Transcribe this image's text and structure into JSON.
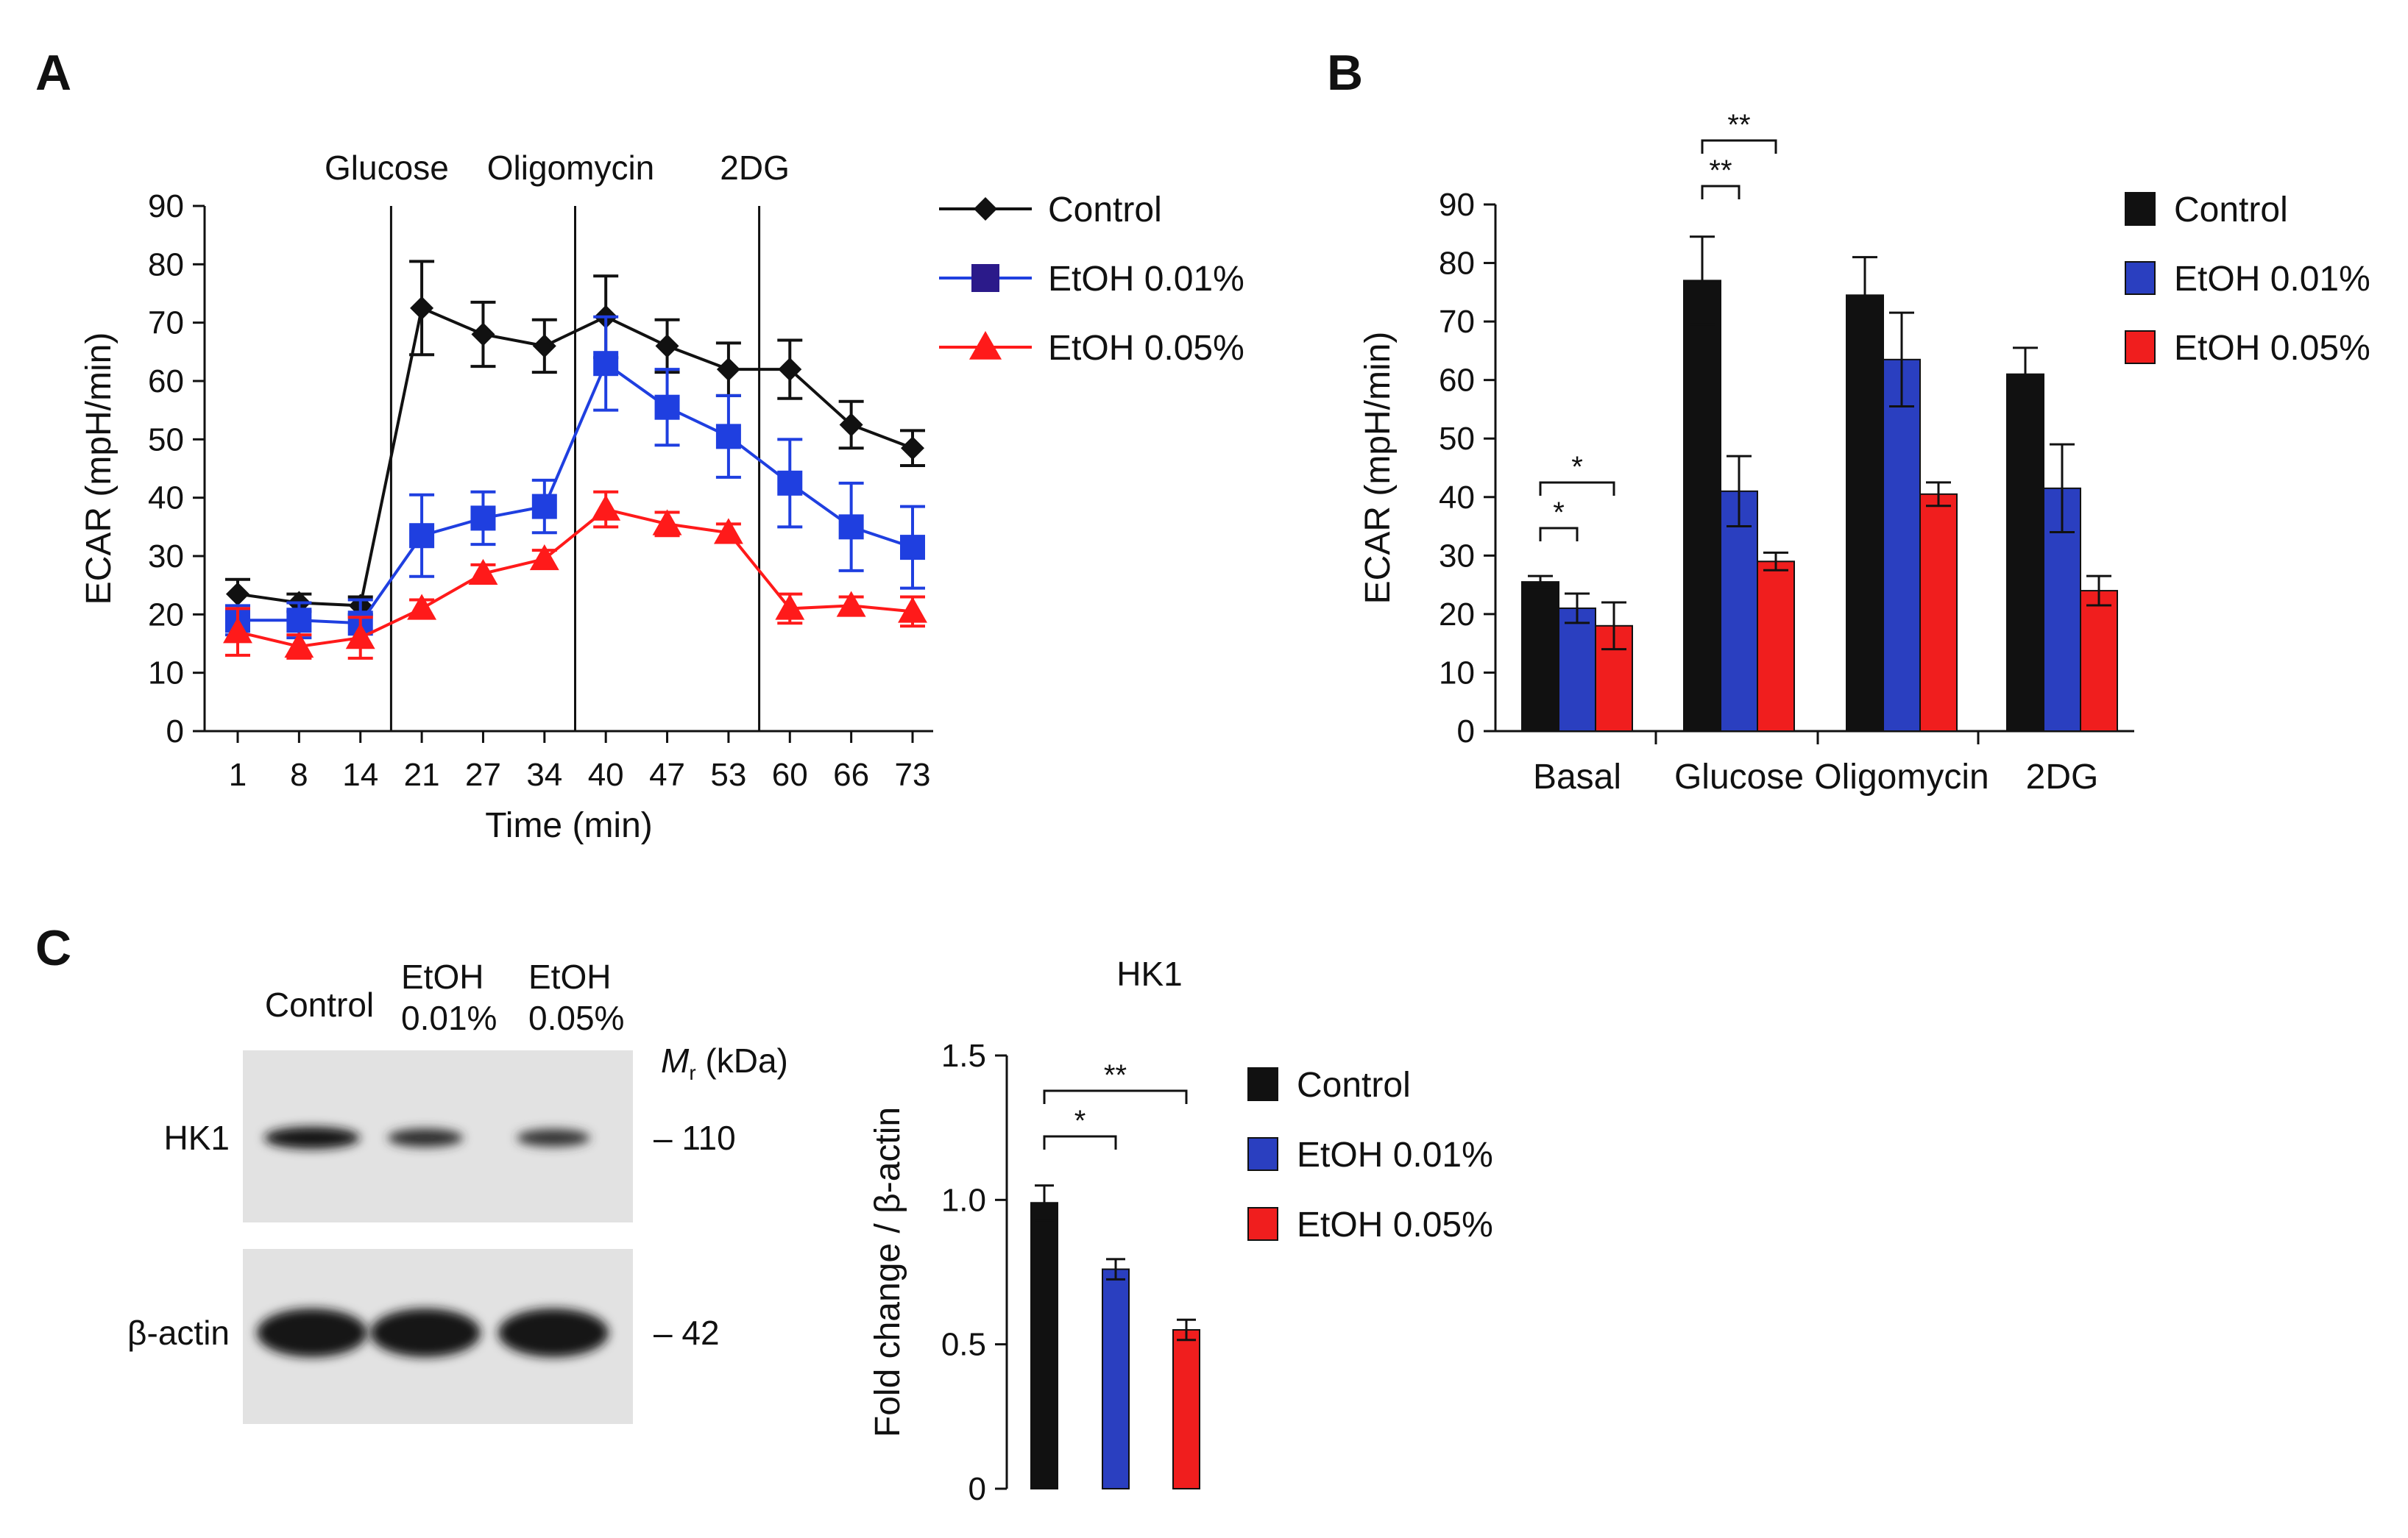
{
  "panels": {
    "a": "A",
    "b": "B",
    "c": "C"
  },
  "colors": {
    "control": "#111111",
    "etoh001": "#1f3fe0",
    "etoh005": "#ff1a1a",
    "bar_etoh001": "#2a3fc0",
    "bar_etoh005": "#f01e1e",
    "legend_square_etoh001": "#2b1a8a"
  },
  "blot": {
    "columns": [
      "Control",
      "EtOH\n0.01%",
      "EtOH\n0.05%"
    ],
    "mr_label": "M",
    "mr_sub": "r",
    "mr_unit": " (kDa)",
    "rows": [
      {
        "label": "HK1",
        "marker": "110",
        "intensity": [
          1.0,
          0.62,
          0.55
        ]
      },
      {
        "label": "β-actin",
        "marker": "42",
        "intensity": [
          1.0,
          0.97,
          0.95
        ]
      }
    ]
  },
  "chart_data": [
    {
      "panel": "A",
      "type": "line",
      "title": "",
      "xlabel": "Time (min)",
      "ylabel": "ECAR (mpH/min)",
      "ylim": [
        0,
        90
      ],
      "yticks": [
        0,
        10,
        20,
        30,
        40,
        50,
        60,
        70,
        80,
        90
      ],
      "x": [
        "1",
        "8",
        "14",
        "21",
        "27",
        "34",
        "40",
        "47",
        "53",
        "60",
        "66",
        "73"
      ],
      "injections": [
        "Glucose",
        "Oligomycin",
        "2DG"
      ],
      "legend_position": "top-right",
      "series": [
        {
          "name": "Control",
          "marker": "diamond",
          "values": [
            23.5,
            22,
            21.5,
            72.5,
            68,
            66,
            71,
            66,
            62,
            62,
            52.5,
            48.5
          ],
          "errors": [
            2.5,
            1.5,
            1.5,
            8,
            5.5,
            4.5,
            7,
            4.5,
            4.5,
            5,
            4,
            3
          ]
        },
        {
          "name": "EtOH 0.01%",
          "marker": "square",
          "values": [
            19,
            19,
            18.5,
            33.5,
            36.5,
            38.5,
            63,
            55.5,
            50.5,
            42.5,
            35,
            31.5
          ],
          "errors": [
            2.5,
            3,
            4,
            7,
            4.5,
            4.5,
            8,
            6.5,
            7,
            7.5,
            7.5,
            7
          ]
        },
        {
          "name": "EtOH 0.05%",
          "marker": "triangle",
          "values": [
            17,
            14.5,
            16,
            21,
            27,
            29.5,
            38,
            35.5,
            34,
            21,
            21.5,
            20.5
          ],
          "errors": [
            4,
            2,
            3.5,
            1.5,
            1.5,
            1.5,
            3,
            2,
            1.5,
            2.5,
            1.5,
            2.5
          ]
        }
      ]
    },
    {
      "panel": "B",
      "type": "bar",
      "title": "",
      "xlabel": "",
      "ylabel": "ECAR (mpH/min)",
      "ylim": [
        0,
        90
      ],
      "yticks": [
        0,
        10,
        20,
        30,
        40,
        50,
        60,
        70,
        80,
        90
      ],
      "categories": [
        "Basal",
        "Glucose",
        "Oligomycin",
        "2DG"
      ],
      "legend_position": "top-right",
      "series": [
        {
          "name": "Control",
          "values": [
            25.5,
            77,
            74.5,
            61
          ],
          "errors": [
            1,
            7.5,
            6.5,
            4.5
          ]
        },
        {
          "name": "EtOH 0.01%",
          "values": [
            21,
            41,
            63.5,
            41.5
          ],
          "errors": [
            2.5,
            6,
            8,
            7.5
          ]
        },
        {
          "name": "EtOH 0.05%",
          "values": [
            18,
            29,
            40.5,
            24
          ],
          "errors": [
            4,
            1.5,
            2,
            2.5
          ]
        }
      ],
      "significance": [
        {
          "category": "Basal",
          "from": 0,
          "to": 1,
          "label": "*",
          "level": 0
        },
        {
          "category": "Basal",
          "from": 0,
          "to": 2,
          "label": "*",
          "level": 1
        },
        {
          "category": "Glucose",
          "from": 0,
          "to": 1,
          "label": "**",
          "level": 0
        },
        {
          "category": "Glucose",
          "from": 0,
          "to": 2,
          "label": "**",
          "level": 1
        }
      ]
    },
    {
      "panel": "C",
      "type": "bar",
      "title": "HK1",
      "xlabel": "",
      "ylabel": "Fold change / β-actin",
      "ylim": [
        0,
        1.5
      ],
      "yticks": [
        "0",
        "0.5",
        "1.0",
        "1.5"
      ],
      "categories": [
        "Control",
        "EtOH 0.01%",
        "EtOH 0.05%"
      ],
      "legend_position": "right",
      "series": [
        {
          "name": "HK1",
          "values": [
            0.99,
            0.76,
            0.55
          ],
          "errors": [
            0.06,
            0.035,
            0.035
          ]
        }
      ],
      "significance": [
        {
          "from": 0,
          "to": 1,
          "label": "*",
          "level": 0
        },
        {
          "from": 0,
          "to": 2,
          "label": "**",
          "level": 1
        }
      ]
    }
  ]
}
